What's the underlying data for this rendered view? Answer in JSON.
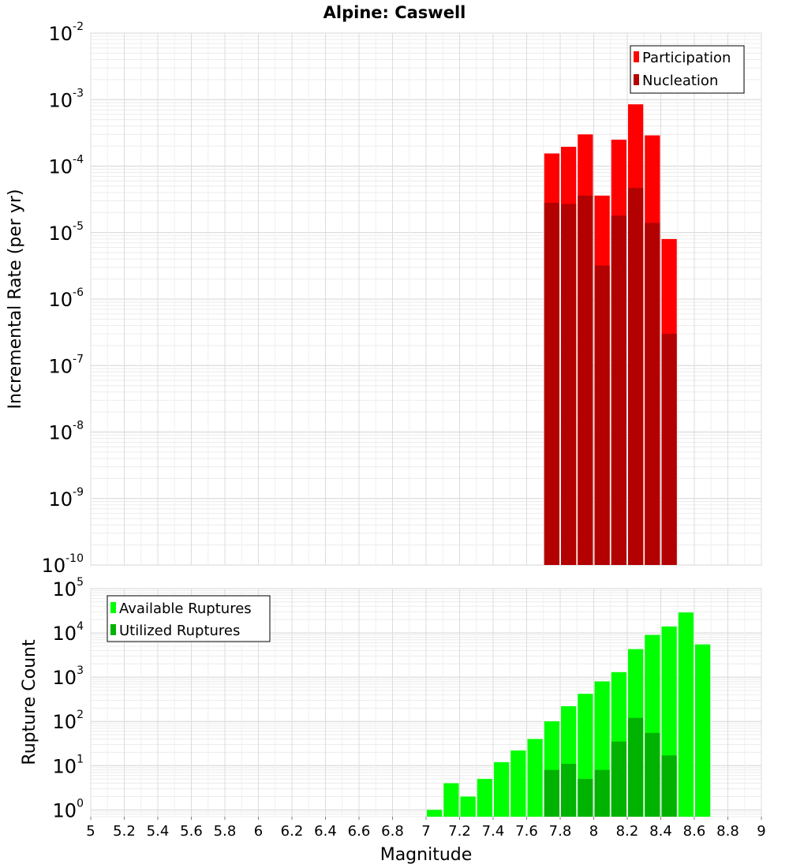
{
  "chart_data": [
    {
      "type": "bar",
      "title": "Alpine: Caswell",
      "xlabel": "Magnitude",
      "ylabel": "Incremental Rate (per yr)",
      "yscale": "log",
      "xlim": [
        5,
        9
      ],
      "ylim": [
        1e-10,
        0.01
      ],
      "y_tick_exponents": [
        "-10",
        "-9",
        "-8",
        "-7",
        "-6",
        "-5",
        "-4",
        "-3",
        "-2"
      ],
      "grid": true,
      "legend_position": "top-right",
      "bar_width": 0.1,
      "x": [
        7.75,
        7.85,
        7.95,
        8.05,
        8.15,
        8.25,
        8.35,
        8.45
      ],
      "series": [
        {
          "name": "Participation",
          "color": "#ff0000",
          "values": [
            0.000155,
            0.000195,
            0.0003,
            3.6e-05,
            0.00025,
            0.00085,
            0.00029,
            8e-06
          ]
        },
        {
          "name": "Nucleation",
          "color": "#b30000",
          "values": [
            2.8e-05,
            2.7e-05,
            3.6e-05,
            3.2e-06,
            1.8e-05,
            4.7e-05,
            1.4e-05,
            3e-07
          ]
        }
      ]
    },
    {
      "type": "bar",
      "xlabel": "Magnitude",
      "ylabel": "Rupture Count",
      "yscale": "log",
      "xlim": [
        5,
        9
      ],
      "ylim": [
        0.7,
        100000
      ],
      "x_ticks": [
        "5",
        "5.2",
        "5.4",
        "5.6",
        "5.8",
        "6",
        "6.2",
        "6.4",
        "6.6",
        "6.8",
        "7",
        "7.2",
        "7.4",
        "7.6",
        "7.8",
        "8",
        "8.2",
        "8.4",
        "8.6",
        "8.8",
        "9"
      ],
      "y_tick_exponents": [
        "0",
        "1",
        "2",
        "3",
        "4",
        "5"
      ],
      "grid": true,
      "legend_position": "top-left",
      "bar_width": 0.1,
      "x": [
        7.05,
        7.15,
        7.25,
        7.35,
        7.45,
        7.55,
        7.65,
        7.75,
        7.85,
        7.95,
        8.05,
        8.15,
        8.25,
        8.35,
        8.45,
        8.55,
        8.65
      ],
      "series": [
        {
          "name": "Available Ruptures",
          "color": "#00ff00",
          "values": [
            1,
            4,
            2,
            5,
            12,
            22,
            40,
            100,
            220,
            420,
            800,
            1300,
            4300,
            9000,
            14000,
            29000,
            5500
          ]
        },
        {
          "name": "Utilized Ruptures",
          "color": "#00b300",
          "values": [
            null,
            null,
            null,
            null,
            null,
            null,
            null,
            8,
            11,
            5,
            8,
            35,
            120,
            55,
            17,
            null,
            null
          ]
        }
      ]
    }
  ]
}
